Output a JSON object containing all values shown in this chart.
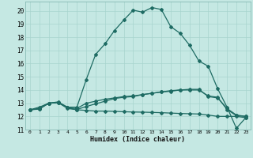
{
  "title": "",
  "xlabel": "Humidex (Indice chaleur)",
  "xlim": [
    -0.5,
    23.5
  ],
  "ylim": [
    11,
    20.7
  ],
  "yticks": [
    11,
    12,
    13,
    14,
    15,
    16,
    17,
    18,
    19,
    20
  ],
  "xticks": [
    0,
    1,
    2,
    3,
    4,
    5,
    6,
    7,
    8,
    9,
    10,
    11,
    12,
    13,
    14,
    15,
    16,
    17,
    18,
    19,
    20,
    21,
    22,
    23
  ],
  "bg_color": "#c5e8e3",
  "line_color": "#1e6b63",
  "grid_color": "#a8d4ce",
  "series": [
    {
      "x": [
        0,
        1,
        2,
        3,
        4,
        5,
        6,
        7,
        8,
        9,
        10,
        11,
        12,
        13,
        14,
        15,
        16,
        17,
        18,
        19,
        20,
        21,
        22,
        23
      ],
      "y": [
        12.5,
        12.7,
        13.0,
        13.1,
        12.7,
        12.7,
        14.8,
        16.7,
        17.5,
        18.5,
        19.3,
        20.05,
        19.9,
        20.25,
        20.1,
        18.8,
        18.3,
        17.4,
        16.2,
        15.8,
        14.1,
        12.7,
        11.1,
        11.9
      ]
    },
    {
      "x": [
        0,
        1,
        2,
        3,
        4,
        5,
        6,
        7,
        8,
        9,
        10,
        11,
        12,
        13,
        14,
        15,
        16,
        17,
        18,
        19,
        20,
        21,
        22,
        23
      ],
      "y": [
        12.5,
        12.6,
        13.0,
        13.05,
        12.65,
        12.6,
        13.0,
        13.15,
        13.3,
        13.4,
        13.5,
        13.55,
        13.65,
        13.75,
        13.85,
        13.9,
        14.0,
        14.05,
        14.05,
        13.5,
        13.4,
        12.6,
        12.1,
        12.0
      ]
    },
    {
      "x": [
        0,
        1,
        2,
        3,
        4,
        5,
        6,
        7,
        8,
        9,
        10,
        11,
        12,
        13,
        14,
        15,
        16,
        17,
        18,
        19,
        20,
        21,
        22,
        23
      ],
      "y": [
        12.5,
        12.55,
        13.0,
        13.05,
        12.6,
        12.5,
        12.45,
        12.4,
        12.4,
        12.38,
        12.35,
        12.33,
        12.32,
        12.3,
        12.28,
        12.25,
        12.22,
        12.2,
        12.18,
        12.1,
        12.0,
        12.0,
        12.0,
        11.9
      ]
    },
    {
      "x": [
        0,
        1,
        2,
        3,
        4,
        5,
        6,
        7,
        8,
        9,
        10,
        11,
        12,
        13,
        14,
        15,
        16,
        17,
        18,
        19,
        20,
        21,
        22,
        23
      ],
      "y": [
        12.5,
        12.58,
        13.0,
        13.05,
        12.65,
        12.52,
        12.75,
        12.95,
        13.15,
        13.35,
        13.45,
        13.5,
        13.65,
        13.75,
        13.85,
        13.95,
        14.0,
        14.0,
        14.0,
        13.55,
        13.45,
        12.52,
        12.05,
        12.0
      ]
    }
  ]
}
